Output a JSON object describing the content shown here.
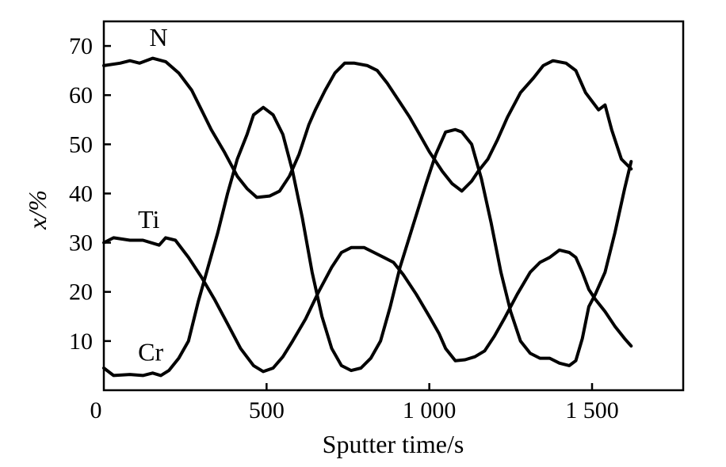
{
  "chart_data": {
    "type": "line",
    "xlabel": "Sputter time/s",
    "ylabel": "x/%",
    "xlim": [
      0,
      1780
    ],
    "ylim": [
      0,
      75
    ],
    "x_ticks": [
      {
        "value": 0,
        "label": "0"
      },
      {
        "value": 500,
        "label": "500"
      },
      {
        "value": 1000,
        "label": "1 000"
      },
      {
        "value": 1500,
        "label": "1 500"
      }
    ],
    "y_ticks": [
      {
        "value": 10,
        "label": "10"
      },
      {
        "value": 20,
        "label": "20"
      },
      {
        "value": 30,
        "label": "30"
      },
      {
        "value": 40,
        "label": "40"
      },
      {
        "value": 50,
        "label": "50"
      },
      {
        "value": 60,
        "label": "60"
      },
      {
        "value": 70,
        "label": "70"
      }
    ],
    "grid": false,
    "legend": "none",
    "series": [
      {
        "name": "N",
        "label_anchor": {
          "x": 140,
          "y": 70
        },
        "points": [
          [
            0,
            66
          ],
          [
            50,
            66.5
          ],
          [
            80,
            67
          ],
          [
            110,
            66.5
          ],
          [
            150,
            67.5
          ],
          [
            190,
            66.8
          ],
          [
            230,
            64.5
          ],
          [
            270,
            61
          ],
          [
            300,
            57
          ],
          [
            330,
            53
          ],
          [
            370,
            48.5
          ],
          [
            410,
            43.5
          ],
          [
            440,
            41
          ],
          [
            470,
            39.2
          ],
          [
            510,
            39.5
          ],
          [
            540,
            40.5
          ],
          [
            570,
            43.5
          ],
          [
            600,
            48
          ],
          [
            630,
            54
          ],
          [
            650,
            57
          ],
          [
            680,
            61
          ],
          [
            710,
            64.5
          ],
          [
            740,
            66.5
          ],
          [
            770,
            66.5
          ],
          [
            810,
            66
          ],
          [
            840,
            65
          ],
          [
            870,
            62.5
          ],
          [
            910,
            58.5
          ],
          [
            940,
            55.5
          ],
          [
            970,
            52
          ],
          [
            1000,
            48.5
          ],
          [
            1040,
            44.5
          ],
          [
            1070,
            42
          ],
          [
            1100,
            40.5
          ],
          [
            1130,
            42.5
          ],
          [
            1150,
            44.5
          ],
          [
            1180,
            47
          ],
          [
            1210,
            51
          ],
          [
            1240,
            55.5
          ],
          [
            1280,
            60.5
          ],
          [
            1320,
            63.5
          ],
          [
            1350,
            66
          ],
          [
            1380,
            67
          ],
          [
            1420,
            66.5
          ],
          [
            1450,
            65
          ],
          [
            1480,
            60.5
          ],
          [
            1520,
            57
          ],
          [
            1540,
            58
          ],
          [
            1560,
            53
          ],
          [
            1590,
            47
          ],
          [
            1620,
            45
          ]
        ]
      },
      {
        "name": "Ti",
        "label_anchor": {
          "x": 105,
          "y": 33
        },
        "points": [
          [
            0,
            30
          ],
          [
            30,
            31
          ],
          [
            80,
            30.5
          ],
          [
            120,
            30.5
          ],
          [
            170,
            29.5
          ],
          [
            190,
            31
          ],
          [
            220,
            30.5
          ],
          [
            260,
            27
          ],
          [
            300,
            23
          ],
          [
            340,
            18.5
          ],
          [
            380,
            13.5
          ],
          [
            420,
            8.5
          ],
          [
            460,
            5
          ],
          [
            490,
            3.8
          ],
          [
            520,
            4.5
          ],
          [
            550,
            6.8
          ],
          [
            580,
            10
          ],
          [
            620,
            14.5
          ],
          [
            660,
            20
          ],
          [
            700,
            25
          ],
          [
            730,
            28
          ],
          [
            760,
            29
          ],
          [
            800,
            29
          ],
          [
            830,
            28
          ],
          [
            860,
            27
          ],
          [
            890,
            26
          ],
          [
            920,
            23.5
          ],
          [
            960,
            19.5
          ],
          [
            1000,
            15
          ],
          [
            1030,
            11.5
          ],
          [
            1050,
            8.5
          ],
          [
            1080,
            6
          ],
          [
            1110,
            6.2
          ],
          [
            1140,
            6.8
          ],
          [
            1170,
            8
          ],
          [
            1200,
            11
          ],
          [
            1230,
            14.5
          ],
          [
            1270,
            19.5
          ],
          [
            1310,
            24
          ],
          [
            1340,
            26
          ],
          [
            1370,
            27
          ],
          [
            1400,
            28.5
          ],
          [
            1430,
            28
          ],
          [
            1450,
            27
          ],
          [
            1470,
            24
          ],
          [
            1490,
            20.5
          ],
          [
            1510,
            18.5
          ],
          [
            1540,
            16
          ],
          [
            1570,
            13
          ],
          [
            1600,
            10.5
          ],
          [
            1620,
            9
          ]
        ]
      },
      {
        "name": "Cr",
        "label_anchor": {
          "x": 105,
          "y": 6
        },
        "points": [
          [
            0,
            4.5
          ],
          [
            30,
            3
          ],
          [
            80,
            3.2
          ],
          [
            120,
            3
          ],
          [
            150,
            3.5
          ],
          [
            175,
            3
          ],
          [
            200,
            4
          ],
          [
            230,
            6.5
          ],
          [
            260,
            10
          ],
          [
            290,
            18
          ],
          [
            320,
            25
          ],
          [
            350,
            32
          ],
          [
            380,
            40
          ],
          [
            410,
            47
          ],
          [
            440,
            52
          ],
          [
            460,
            56
          ],
          [
            490,
            57.5
          ],
          [
            520,
            56
          ],
          [
            550,
            52
          ],
          [
            580,
            44.5
          ],
          [
            610,
            35
          ],
          [
            640,
            24
          ],
          [
            670,
            15
          ],
          [
            700,
            8.5
          ],
          [
            730,
            5
          ],
          [
            760,
            4
          ],
          [
            790,
            4.5
          ],
          [
            820,
            6.5
          ],
          [
            850,
            10
          ],
          [
            880,
            17
          ],
          [
            910,
            25
          ],
          [
            950,
            33.5
          ],
          [
            990,
            42
          ],
          [
            1020,
            48
          ],
          [
            1050,
            52.5
          ],
          [
            1080,
            53
          ],
          [
            1100,
            52.5
          ],
          [
            1130,
            50
          ],
          [
            1160,
            43
          ],
          [
            1190,
            34
          ],
          [
            1220,
            24
          ],
          [
            1250,
            16
          ],
          [
            1280,
            10
          ],
          [
            1310,
            7.5
          ],
          [
            1340,
            6.5
          ],
          [
            1370,
            6.5
          ],
          [
            1400,
            5.5
          ],
          [
            1430,
            5
          ],
          [
            1450,
            6
          ],
          [
            1470,
            10.5
          ],
          [
            1490,
            17
          ],
          [
            1510,
            19.5
          ],
          [
            1540,
            24
          ],
          [
            1570,
            32
          ],
          [
            1600,
            41
          ],
          [
            1620,
            46.5
          ]
        ]
      }
    ]
  }
}
